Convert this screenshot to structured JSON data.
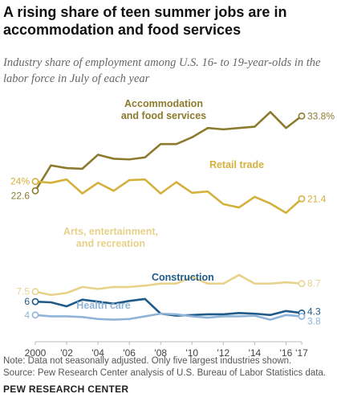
{
  "header": {
    "title": "A rising share of teen summer jobs are in accommodation and food services",
    "subtitle": "Industry share of employment among U.S. 16- to 19-year-olds in the labor force in July of each year"
  },
  "footer": {
    "note": "Note: Data not seasonally adjusted. Only five largest industries shown.",
    "source": "Source: Pew Research Center analysis of U.S. Bureau of Labor Statistics data.",
    "brand": "PEW RESEARCH CENTER"
  },
  "chart_data": {
    "type": "line",
    "x": [
      2000,
      2001,
      2002,
      2003,
      2004,
      2005,
      2006,
      2007,
      2008,
      2009,
      2010,
      2011,
      2012,
      2013,
      2014,
      2015,
      2016,
      2017
    ],
    "x_tick_values": [
      2000,
      2002,
      2004,
      2006,
      2008,
      2010,
      2012,
      2014,
      2016,
      2017
    ],
    "x_tick_labels": [
      "2000",
      "'02",
      "'04",
      "'06",
      "'08",
      "'10",
      "'12",
      "'14",
      "'16",
      "'17"
    ],
    "ylim": [
      0,
      36
    ],
    "grid": false,
    "series": [
      {
        "name": "Accommodation and food services",
        "label_lines": [
          "Accommodation",
          "and food services"
        ],
        "color": "#8c7b2e",
        "values": [
          22.6,
          26.4,
          26.0,
          25.9,
          28.0,
          27.4,
          27.3,
          27.6,
          29.6,
          29.6,
          30.6,
          32.0,
          31.8,
          32.0,
          32.2,
          34.4,
          32.0,
          33.8
        ],
        "start_label": "22.6",
        "end_label": "33.8%"
      },
      {
        "name": "Retail trade",
        "label_lines": [
          "Retail trade"
        ],
        "color": "#d4b13d",
        "values": [
          24.0,
          23.8,
          24.3,
          22.2,
          23.8,
          22.6,
          24.2,
          24.3,
          22.2,
          23.9,
          22.3,
          22.5,
          20.6,
          20.1,
          21.7,
          20.7,
          19.3,
          21.4
        ],
        "start_label": "24%",
        "end_label": "21.4"
      },
      {
        "name": "Arts, entertainment, and recreation",
        "label_lines": [
          "Arts, entertainment,",
          "and recreation"
        ],
        "color": "#e8d28a",
        "values": [
          7.5,
          7.0,
          7.3,
          8.2,
          7.9,
          8.2,
          8.2,
          8.4,
          8.7,
          8.7,
          9.7,
          8.7,
          8.7,
          10.0,
          8.7,
          8.7,
          8.9,
          8.7
        ],
        "start_label": "7.5",
        "end_label": "8.7"
      },
      {
        "name": "Construction",
        "label_lines": [
          "Construction"
        ],
        "color": "#1f5a88",
        "values": [
          6.0,
          5.9,
          5.3,
          6.3,
          6.0,
          5.7,
          6.1,
          6.4,
          4.2,
          3.9,
          4.0,
          4.1,
          4.1,
          4.3,
          4.2,
          4.0,
          4.6,
          4.3
        ],
        "start_label": "6",
        "end_label": "4.3"
      },
      {
        "name": "Health care",
        "label_lines": [
          "Health care"
        ],
        "color": "#8fb4d8",
        "values": [
          4.0,
          3.8,
          3.8,
          3.7,
          3.4,
          3.3,
          3.4,
          3.8,
          4.2,
          4.1,
          3.8,
          3.6,
          3.8,
          3.8,
          3.9,
          3.3,
          4.0,
          3.8
        ],
        "start_label": "4",
        "end_label": "3.8"
      }
    ]
  }
}
